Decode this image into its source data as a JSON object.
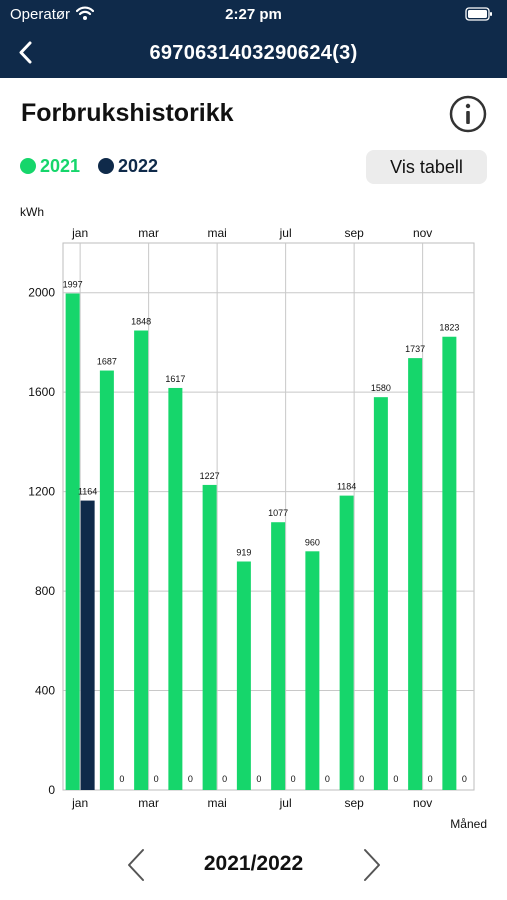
{
  "status_bar": {
    "carrier": "Operatør",
    "time": "2:27 pm"
  },
  "nav": {
    "title": "6970631403290624(3)"
  },
  "page": {
    "heading": "Forbrukshistorikk",
    "vis_tabell_label": "Vis tabell",
    "period": "2021/2022"
  },
  "colors": {
    "nav_bg": "#0f2a4a",
    "series_2021": "#16d66b",
    "series_2022": "#0f2a4a"
  },
  "icons": [
    "signal-wifi-icon",
    "battery-icon",
    "back-chevron-icon",
    "info-icon",
    "chevron-left-icon",
    "chevron-right-icon"
  ],
  "chart_data": {
    "type": "bar",
    "ylabel": "kWh",
    "xlabel": "Måned",
    "ylim": [
      0,
      2200
    ],
    "yticks": [
      0,
      400,
      800,
      1200,
      1600,
      2000
    ],
    "grid": true,
    "legend_position": "top-left",
    "month_labels": [
      "jan",
      "mar",
      "mai",
      "jul",
      "sep",
      "nov"
    ],
    "month_label_index": [
      0,
      2,
      4,
      6,
      8,
      10
    ],
    "series": [
      {
        "name": "2021",
        "color": "#16d66b",
        "values": [
          1997,
          1687,
          1848,
          1617,
          1227,
          919,
          1077,
          960,
          1184,
          1580,
          1737,
          1823
        ]
      },
      {
        "name": "2022",
        "color": "#0f2a4a",
        "values": [
          1164,
          0,
          0,
          0,
          0,
          0,
          0,
          0,
          0,
          0,
          0,
          0
        ]
      }
    ]
  }
}
